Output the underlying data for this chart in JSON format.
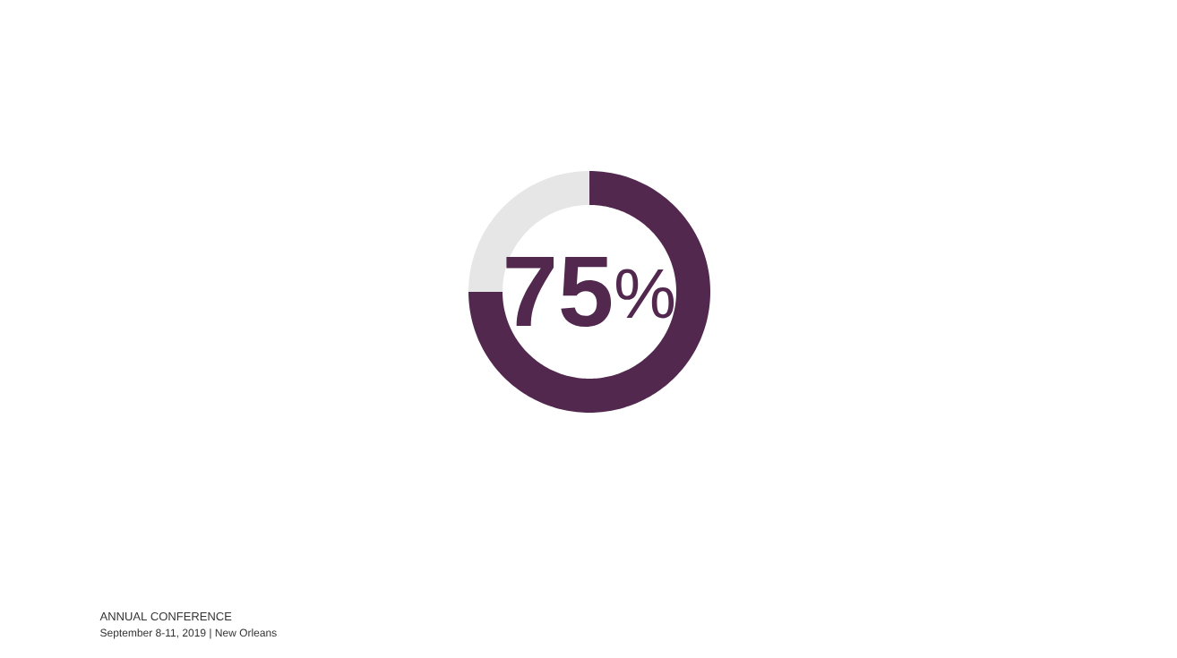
{
  "chart_data": {
    "type": "donut",
    "categories": [
      null,
      null
    ],
    "values": [
      75,
      25
    ],
    "colors": [
      "#52284f",
      "#e6e6e6"
    ],
    "value_labels": [
      "**75**$^{%}$",
      null
    ],
    "annotations": [
      "ANNUAL CONFERENCE",
      "September 8-11, 2019 | New Orleans"
    ]
  }
}
